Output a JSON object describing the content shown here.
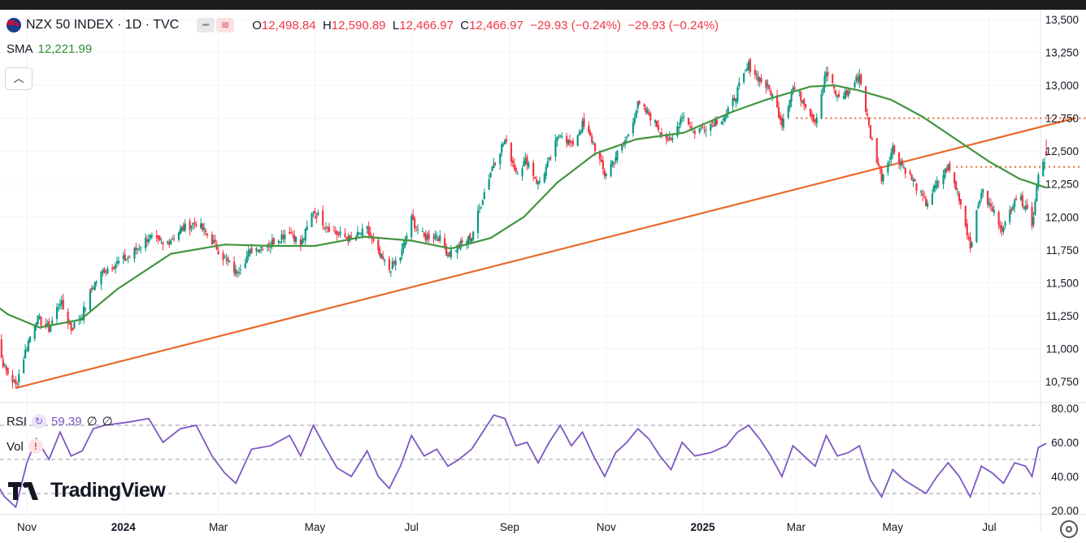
{
  "header": {
    "symbol_title": "NZX 50 INDEX · 1D · TVC",
    "open_label": "O",
    "open": "12,498.84",
    "high_label": "H",
    "high": "12,590.89",
    "low_label": "L",
    "low": "12,466.97",
    "close_label": "C",
    "close": "12,466.97",
    "change": "−29.93 (−0.24%)",
    "change_repeat": "−29.93 (−0.24%)"
  },
  "sma": {
    "label": "SMA",
    "value": "12,221.99"
  },
  "rsi": {
    "label": "RSI",
    "value": "59.39",
    "extra1": "∅",
    "extra2": "∅"
  },
  "vol": {
    "label": "Vol"
  },
  "logo": {
    "text": "TradingView"
  },
  "colors": {
    "up": "#089981",
    "down": "#f23645",
    "sma": "#43953f",
    "trend": "#e86a2b",
    "rsi": "#7e57c2"
  },
  "icons": [
    "nz-flag-icon",
    "collapse-chevron-up-icon",
    "rsi-refresh-icon",
    "vol-alert-icon",
    "tradingview-logo-icon",
    "settings-gear-icon"
  ],
  "chart_data": [
    {
      "type": "candlestick",
      "title": "NZX 50 INDEX · 1D · TVC",
      "y_axis": {
        "ticks": [
          "13,500",
          "13,250",
          "13,000",
          "12,750",
          "12,500",
          "12,250",
          "12,000",
          "11,750",
          "11,500",
          "11,250",
          "11,000",
          "10,750"
        ],
        "values": [
          13500,
          13250,
          13000,
          12750,
          12500,
          12250,
          12000,
          11750,
          11500,
          11250,
          11000,
          10750
        ],
        "range": [
          10600,
          13580
        ],
        "side": "right"
      },
      "x_axis": {
        "ticks": [
          "Nov",
          "2024",
          "Mar",
          "May",
          "Jul",
          "Sep",
          "Nov",
          "2025",
          "Mar",
          "May",
          "Jul"
        ],
        "bold_ticks": [
          "2024",
          "2025"
        ],
        "dates": [
          "2023-11-01",
          "2024-01-01",
          "2024-03-01",
          "2024-05-01",
          "2024-07-01",
          "2024-09-01",
          "2024-11-01",
          "2025-01-01",
          "2025-03-01",
          "2025-05-01",
          "2025-07-01"
        ]
      },
      "price_path": [
        [
          "2023-10-09",
          11220
        ],
        [
          "2023-10-18",
          10850
        ],
        [
          "2023-10-25",
          10720
        ],
        [
          "2023-11-01",
          11020
        ],
        [
          "2023-11-07",
          11230
        ],
        [
          "2023-11-15",
          11150
        ],
        [
          "2023-11-22",
          11360
        ],
        [
          "2023-11-29",
          11150
        ],
        [
          "2023-12-06",
          11260
        ],
        [
          "2023-12-13",
          11480
        ],
        [
          "2023-12-20",
          11600
        ],
        [
          "2024-01-05",
          11700
        ],
        [
          "2024-01-17",
          11850
        ],
        [
          "2024-01-26",
          11780
        ],
        [
          "2024-02-06",
          11900
        ],
        [
          "2024-02-16",
          11960
        ],
        [
          "2024-02-26",
          11820
        ],
        [
          "2024-03-05",
          11680
        ],
        [
          "2024-03-12",
          11580
        ],
        [
          "2024-03-22",
          11750
        ],
        [
          "2024-04-03",
          11800
        ],
        [
          "2024-04-15",
          11900
        ],
        [
          "2024-04-22",
          11780
        ],
        [
          "2024-04-30",
          12050
        ],
        [
          "2024-05-07",
          11950
        ],
        [
          "2024-05-15",
          11870
        ],
        [
          "2024-05-24",
          11830
        ],
        [
          "2024-06-03",
          11900
        ],
        [
          "2024-06-10",
          11720
        ],
        [
          "2024-06-17",
          11600
        ],
        [
          "2024-06-24",
          11700
        ],
        [
          "2024-07-01",
          11980
        ],
        [
          "2024-07-09",
          11840
        ],
        [
          "2024-07-17",
          11870
        ],
        [
          "2024-07-24",
          11720
        ],
        [
          "2024-07-31",
          11780
        ],
        [
          "2024-08-08",
          11850
        ],
        [
          "2024-08-15",
          12150
        ],
        [
          "2024-08-22",
          12420
        ],
        [
          "2024-08-29",
          12580
        ],
        [
          "2024-09-05",
          12350
        ],
        [
          "2024-09-12",
          12430
        ],
        [
          "2024-09-19",
          12250
        ],
        [
          "2024-09-26",
          12420
        ],
        [
          "2024-10-03",
          12650
        ],
        [
          "2024-10-10",
          12540
        ],
        [
          "2024-10-17",
          12700
        ],
        [
          "2024-10-24",
          12560
        ],
        [
          "2024-10-31",
          12320
        ],
        [
          "2024-11-07",
          12460
        ],
        [
          "2024-11-14",
          12600
        ],
        [
          "2024-11-21",
          12850
        ],
        [
          "2024-11-28",
          12780
        ],
        [
          "2024-12-05",
          12660
        ],
        [
          "2024-12-12",
          12560
        ],
        [
          "2024-12-19",
          12780
        ],
        [
          "2024-12-27",
          12650
        ],
        [
          "2025-01-06",
          12710
        ],
        [
          "2025-01-16",
          12770
        ],
        [
          "2025-01-23",
          12960
        ],
        [
          "2025-01-30",
          13150
        ],
        [
          "2025-02-06",
          13050
        ],
        [
          "2025-02-13",
          12950
        ],
        [
          "2025-02-20",
          12720
        ],
        [
          "2025-02-27",
          12980
        ],
        [
          "2025-03-06",
          12880
        ],
        [
          "2025-03-13",
          12730
        ],
        [
          "2025-03-20",
          13100
        ],
        [
          "2025-03-27",
          12910
        ],
        [
          "2025-04-03",
          12950
        ],
        [
          "2025-04-10",
          13080
        ],
        [
          "2025-04-17",
          12620
        ],
        [
          "2025-04-24",
          12300
        ],
        [
          "2025-05-01",
          12520
        ],
        [
          "2025-05-08",
          12380
        ],
        [
          "2025-05-15",
          12250
        ],
        [
          "2025-05-22",
          12100
        ],
        [
          "2025-05-29",
          12250
        ],
        [
          "2025-06-05",
          12380
        ],
        [
          "2025-06-12",
          12150
        ],
        [
          "2025-06-19",
          11780
        ],
        [
          "2025-06-26",
          12200
        ],
        [
          "2025-07-03",
          12050
        ],
        [
          "2025-07-10",
          11900
        ],
        [
          "2025-07-17",
          12150
        ],
        [
          "2025-07-24",
          12100
        ],
        [
          "2025-07-28",
          11920
        ],
        [
          "2025-08-01",
          12350
        ],
        [
          "2025-08-06",
          12467
        ]
      ],
      "sma_path": [
        [
          "2023-09-27",
          11470
        ],
        [
          "2023-10-20",
          11260
        ],
        [
          "2023-11-09",
          11160
        ],
        [
          "2023-12-05",
          11220
        ],
        [
          "2023-12-28",
          11450
        ],
        [
          "2024-01-31",
          11720
        ],
        [
          "2024-03-05",
          11790
        ],
        [
          "2024-04-05",
          11780
        ],
        [
          "2024-05-01",
          11780
        ],
        [
          "2024-06-01",
          11850
        ],
        [
          "2024-07-01",
          11820
        ],
        [
          "2024-07-26",
          11760
        ],
        [
          "2024-08-20",
          11840
        ],
        [
          "2024-09-10",
          12000
        ],
        [
          "2024-10-01",
          12260
        ],
        [
          "2024-10-25",
          12480
        ],
        [
          "2024-11-20",
          12590
        ],
        [
          "2024-12-20",
          12640
        ],
        [
          "2025-01-20",
          12800
        ],
        [
          "2025-02-10",
          12890
        ],
        [
          "2025-03-10",
          12990
        ],
        [
          "2025-03-25",
          13000
        ],
        [
          "2025-04-10",
          12960
        ],
        [
          "2025-04-30",
          12890
        ],
        [
          "2025-05-20",
          12760
        ],
        [
          "2025-06-10",
          12590
        ],
        [
          "2025-07-01",
          12420
        ],
        [
          "2025-07-20",
          12290
        ],
        [
          "2025-08-06",
          12222
        ]
      ],
      "trendline": [
        [
          "2023-10-25",
          10700
        ],
        [
          "2025-08-24",
          12750
        ]
      ],
      "resistance_levels": [
        {
          "value": 12750,
          "from": "2025-03-01",
          "to": "2025-09-01"
        },
        {
          "value": 12380,
          "from": "2025-06-10",
          "to": "2025-08-28"
        }
      ],
      "last_close": 12466.97,
      "sma_last": 12221.99
    },
    {
      "type": "line",
      "title": "RSI",
      "y_axis": {
        "ticks": [
          "80.00",
          "60.00",
          "40.00",
          "20.00"
        ],
        "values": [
          80,
          60,
          40,
          20
        ],
        "range": [
          20,
          82
        ]
      },
      "bands": [
        70,
        50,
        30
      ],
      "last_value": 59.39,
      "path": [
        [
          "2023-10-09",
          42
        ],
        [
          "2023-10-18",
          28
        ],
        [
          "2023-10-25",
          22
        ],
        [
          "2023-11-01",
          48
        ],
        [
          "2023-11-07",
          62
        ],
        [
          "2023-11-15",
          50
        ],
        [
          "2023-11-22",
          66
        ],
        [
          "2023-11-29",
          52
        ],
        [
          "2023-12-06",
          55
        ],
        [
          "2023-12-13",
          68
        ],
        [
          "2023-12-20",
          70
        ],
        [
          "2024-01-05",
          72
        ],
        [
          "2024-01-17",
          74
        ],
        [
          "2024-01-26",
          60
        ],
        [
          "2024-02-06",
          68
        ],
        [
          "2024-02-16",
          70
        ],
        [
          "2024-02-26",
          52
        ],
        [
          "2024-03-05",
          42
        ],
        [
          "2024-03-12",
          36
        ],
        [
          "2024-03-22",
          56
        ],
        [
          "2024-04-03",
          58
        ],
        [
          "2024-04-15",
          64
        ],
        [
          "2024-04-22",
          52
        ],
        [
          "2024-04-30",
          70
        ],
        [
          "2024-05-07",
          58
        ],
        [
          "2024-05-15",
          45
        ],
        [
          "2024-05-24",
          40
        ],
        [
          "2024-06-03",
          55
        ],
        [
          "2024-06-10",
          40
        ],
        [
          "2024-06-17",
          33
        ],
        [
          "2024-06-24",
          46
        ],
        [
          "2024-07-01",
          64
        ],
        [
          "2024-07-09",
          52
        ],
        [
          "2024-07-17",
          56
        ],
        [
          "2024-07-24",
          46
        ],
        [
          "2024-07-31",
          50
        ],
        [
          "2024-08-08",
          56
        ],
        [
          "2024-08-15",
          66
        ],
        [
          "2024-08-22",
          76
        ],
        [
          "2024-08-29",
          74
        ],
        [
          "2024-09-05",
          58
        ],
        [
          "2024-09-12",
          60
        ],
        [
          "2024-09-19",
          48
        ],
        [
          "2024-09-26",
          60
        ],
        [
          "2024-10-03",
          70
        ],
        [
          "2024-10-10",
          58
        ],
        [
          "2024-10-17",
          66
        ],
        [
          "2024-10-24",
          52
        ],
        [
          "2024-10-31",
          40
        ],
        [
          "2024-11-07",
          54
        ],
        [
          "2024-11-14",
          60
        ],
        [
          "2024-11-21",
          68
        ],
        [
          "2024-11-28",
          62
        ],
        [
          "2024-12-05",
          52
        ],
        [
          "2024-12-12",
          44
        ],
        [
          "2024-12-19",
          60
        ],
        [
          "2024-12-27",
          52
        ],
        [
          "2025-01-06",
          54
        ],
        [
          "2025-01-16",
          58
        ],
        [
          "2025-01-23",
          66
        ],
        [
          "2025-01-30",
          70
        ],
        [
          "2025-02-06",
          62
        ],
        [
          "2025-02-13",
          52
        ],
        [
          "2025-02-20",
          40
        ],
        [
          "2025-02-27",
          58
        ],
        [
          "2025-03-06",
          52
        ],
        [
          "2025-03-13",
          46
        ],
        [
          "2025-03-20",
          64
        ],
        [
          "2025-03-27",
          52
        ],
        [
          "2025-04-03",
          54
        ],
        [
          "2025-04-10",
          58
        ],
        [
          "2025-04-17",
          38
        ],
        [
          "2025-04-24",
          28
        ],
        [
          "2025-05-01",
          44
        ],
        [
          "2025-05-08",
          38
        ],
        [
          "2025-05-15",
          34
        ],
        [
          "2025-05-22",
          30
        ],
        [
          "2025-05-29",
          40
        ],
        [
          "2025-06-05",
          48
        ],
        [
          "2025-06-12",
          40
        ],
        [
          "2025-06-19",
          28
        ],
        [
          "2025-06-26",
          46
        ],
        [
          "2025-07-03",
          42
        ],
        [
          "2025-07-10",
          36
        ],
        [
          "2025-07-17",
          48
        ],
        [
          "2025-07-24",
          46
        ],
        [
          "2025-07-28",
          40
        ],
        [
          "2025-08-01",
          57
        ],
        [
          "2025-08-06",
          59.39
        ]
      ]
    }
  ]
}
